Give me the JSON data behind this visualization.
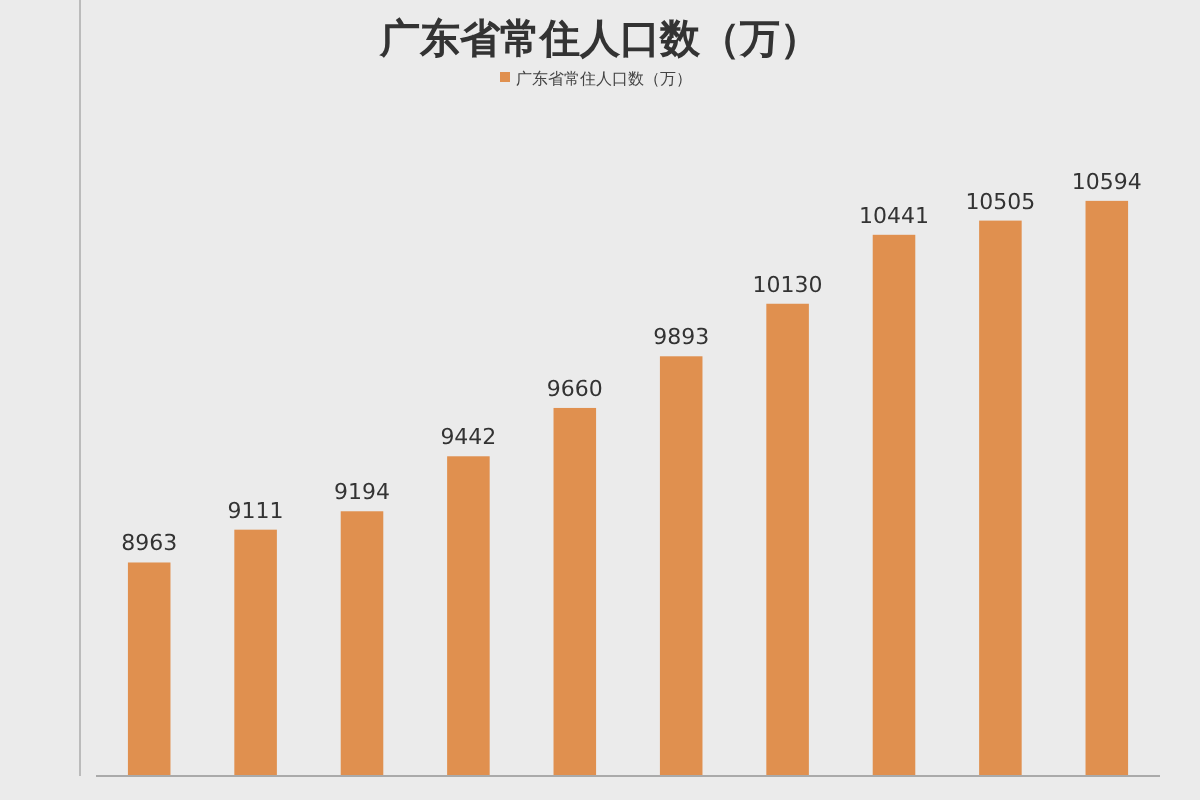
{
  "chart_data": {
    "type": "bar",
    "title": "广东省常住人口数（万）",
    "categories": [
      null,
      null,
      null,
      null,
      null,
      null,
      null,
      null,
      null,
      null
    ],
    "series": [
      {
        "name": "广东省常住人口数（万）",
        "color": "#e0904f",
        "values": [
          8963,
          9111,
          9194,
          9442,
          9660,
          9893,
          10130,
          10441,
          10505,
          10594
        ]
      }
    ],
    "ylim": [
      8000,
      11500
    ],
    "data_labels": true,
    "legend": "top"
  }
}
